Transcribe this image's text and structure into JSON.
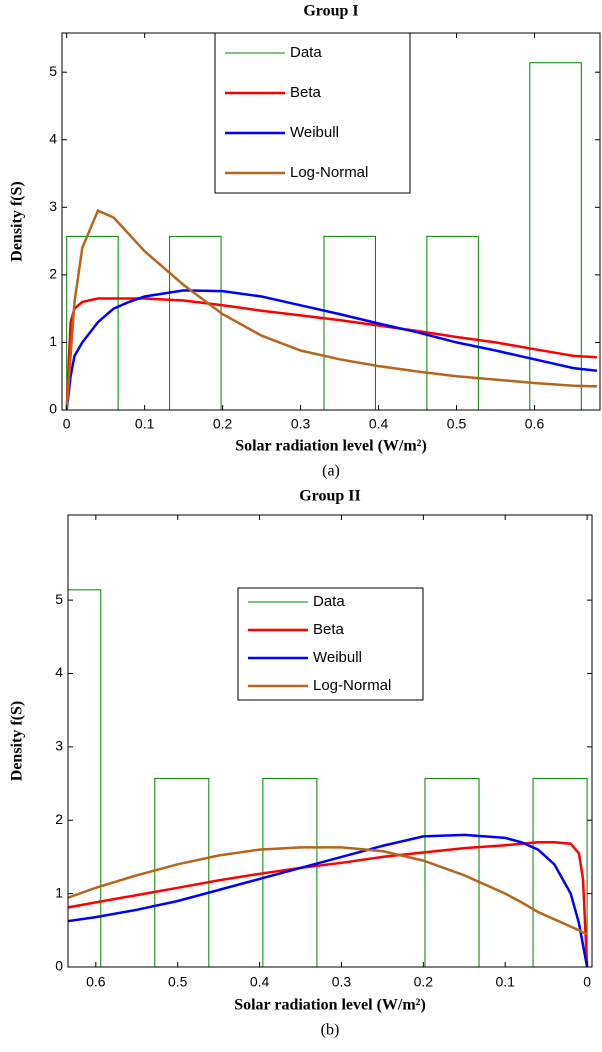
{
  "chart_data": [
    {
      "type": "line",
      "title": "Group I",
      "caption": "(a)",
      "xlabel": "Solar radiation level (W/m²)",
      "ylabel": "Density f(S)",
      "xlim": [
        -0.006,
        0.684
      ],
      "ylim": [
        0,
        5.58
      ],
      "xticks": [
        0,
        0.1,
        0.2,
        0.3,
        0.4,
        0.5,
        0.6
      ],
      "yticks": [
        0,
        1,
        2,
        3,
        4,
        5
      ],
      "xreverse": false,
      "legend": "north",
      "x": [
        0,
        0.005,
        0.01,
        0.02,
        0.04,
        0.06,
        0.08,
        0.1,
        0.15,
        0.2,
        0.25,
        0.3,
        0.35,
        0.4,
        0.45,
        0.5,
        0.55,
        0.6,
        0.65,
        0.68
      ],
      "series": [
        {
          "name": "Data",
          "type": "histogram",
          "color": "#008000",
          "bins": [
            0,
            0.066,
            0.132,
            0.198,
            0.264,
            0.33,
            0.396,
            0.462,
            0.528,
            0.594,
            0.66
          ],
          "values": [
            2.57,
            0,
            2.57,
            0,
            0,
            2.57,
            0,
            2.57,
            0,
            5.14
          ]
        },
        {
          "name": "Beta",
          "type": "line",
          "color": "#ff0000",
          "values": [
            0,
            1.3,
            1.5,
            1.6,
            1.65,
            1.65,
            1.65,
            1.65,
            1.62,
            1.55,
            1.47,
            1.4,
            1.33,
            1.25,
            1.17,
            1.08,
            1.0,
            0.9,
            0.8,
            0.78
          ]
        },
        {
          "name": "Weibull",
          "type": "line",
          "color": "#0000ff",
          "values": [
            0,
            0.5,
            0.8,
            1.0,
            1.3,
            1.5,
            1.6,
            1.68,
            1.77,
            1.76,
            1.68,
            1.55,
            1.42,
            1.28,
            1.15,
            1.0,
            0.88,
            0.75,
            0.62,
            0.58
          ]
        },
        {
          "name": "Log-Normal",
          "type": "line",
          "color": "#b5651d",
          "values": [
            0,
            0.8,
            1.6,
            2.4,
            2.95,
            2.85,
            2.6,
            2.35,
            1.85,
            1.42,
            1.1,
            0.88,
            0.75,
            0.65,
            0.57,
            0.5,
            0.45,
            0.4,
            0.36,
            0.35
          ]
        }
      ]
    },
    {
      "type": "line",
      "title": "Group II",
      "caption": "(b)",
      "xlabel": "Solar radiation level (W/m²)",
      "ylabel": "Density f(S)",
      "xlim": [
        0.634,
        -0.006
      ],
      "ylim": [
        0,
        6.16
      ],
      "xticks": [
        0,
        0.1,
        0.2,
        0.3,
        0.4,
        0.5,
        0.6
      ],
      "yticks": [
        0,
        1,
        2,
        3,
        4,
        5
      ],
      "xreverse": true,
      "legend": "north",
      "x": [
        0,
        0.005,
        0.01,
        0.02,
        0.04,
        0.06,
        0.08,
        0.1,
        0.15,
        0.2,
        0.25,
        0.3,
        0.35,
        0.4,
        0.45,
        0.5,
        0.55,
        0.6,
        0.65
      ],
      "series": [
        {
          "name": "Data",
          "type": "histogram",
          "color": "#008000",
          "bins": [
            0,
            0.066,
            0.132,
            0.198,
            0.264,
            0.33,
            0.396,
            0.462,
            0.528,
            0.594,
            0.66
          ],
          "values": [
            2.57,
            0,
            2.57,
            0,
            0,
            2.57,
            0,
            2.57,
            0,
            5.14
          ]
        },
        {
          "name": "Beta",
          "type": "line",
          "color": "#ff0000",
          "values": [
            0,
            1.2,
            1.55,
            1.68,
            1.7,
            1.7,
            1.68,
            1.66,
            1.62,
            1.56,
            1.5,
            1.42,
            1.35,
            1.27,
            1.18,
            1.08,
            0.98,
            0.88,
            0.78
          ]
        },
        {
          "name": "Weibull",
          "type": "line",
          "color": "#0000ff",
          "values": [
            0,
            0.3,
            0.6,
            1.0,
            1.4,
            1.6,
            1.7,
            1.76,
            1.8,
            1.78,
            1.65,
            1.5,
            1.35,
            1.2,
            1.05,
            0.9,
            0.78,
            0.68,
            0.6
          ]
        },
        {
          "name": "Log-Normal",
          "type": "line",
          "color": "#b5651d",
          "values": [
            0.45,
            0.47,
            0.5,
            0.55,
            0.65,
            0.75,
            0.88,
            1.0,
            1.25,
            1.45,
            1.58,
            1.63,
            1.63,
            1.6,
            1.52,
            1.4,
            1.25,
            1.08,
            0.88
          ]
        }
      ]
    }
  ]
}
